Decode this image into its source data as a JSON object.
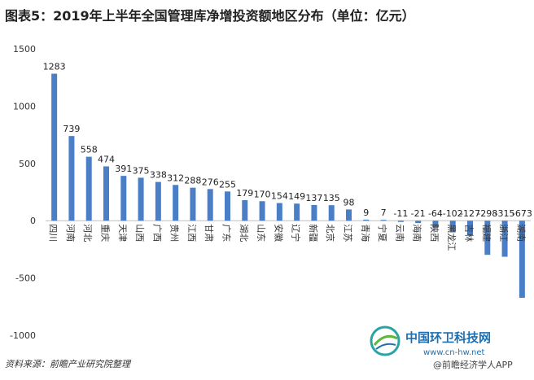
{
  "title": "图表5：2019年上半年全国管理库净增投资额地区分布（单位：亿元）",
  "source": "资料来源：前瞻产业研究院整理",
  "watermark": {
    "brand": "中国环卫科技网",
    "url": "www.cn-hw.net",
    "app": "@前瞻经济学人APP"
  },
  "colors": {
    "bar": "#4a7fc8",
    "axis": "#bfbfbf",
    "brand": "#1c6fb3"
  },
  "chart_data": {
    "type": "bar",
    "title": "图表5：2019年上半年全国管理库净增投资额地区分布（单位：亿元）",
    "ylabel": "",
    "xlabel": "",
    "ylim": [
      -1000,
      1500
    ],
    "yticks": [
      1500,
      1000,
      500,
      0,
      -500,
      -1000
    ],
    "grid": false,
    "categories": [
      "四川",
      "河南",
      "河北",
      "重庆",
      "天津",
      "山西",
      "广西",
      "贵州",
      "江西",
      "甘肃",
      "广东",
      "湖北",
      "山东",
      "安徽",
      "辽宁",
      "新疆",
      "北京",
      "江苏",
      "青海",
      "宁夏",
      "云南",
      "海南",
      "陕西",
      "黑龙江",
      "吉林",
      "福建",
      "浙江",
      "湖南"
    ],
    "values": [
      1283,
      739,
      558,
      474,
      391,
      375,
      338,
      312,
      288,
      276,
      255,
      179,
      170,
      154,
      149,
      137,
      135,
      98,
      9,
      7,
      -11,
      -21,
      -64,
      -102,
      -127,
      -298,
      -315,
      -673
    ],
    "value_labels": [
      "1283",
      "739",
      "558",
      "474",
      "391",
      "375",
      "338",
      "312",
      "288",
      "276",
      "255",
      "179",
      "170",
      "154",
      "149",
      "137",
      "135",
      "98",
      "9",
      "7",
      "-11",
      "-21",
      "-64",
      "-102",
      "-127",
      "-298",
      "-315",
      "-673"
    ]
  }
}
